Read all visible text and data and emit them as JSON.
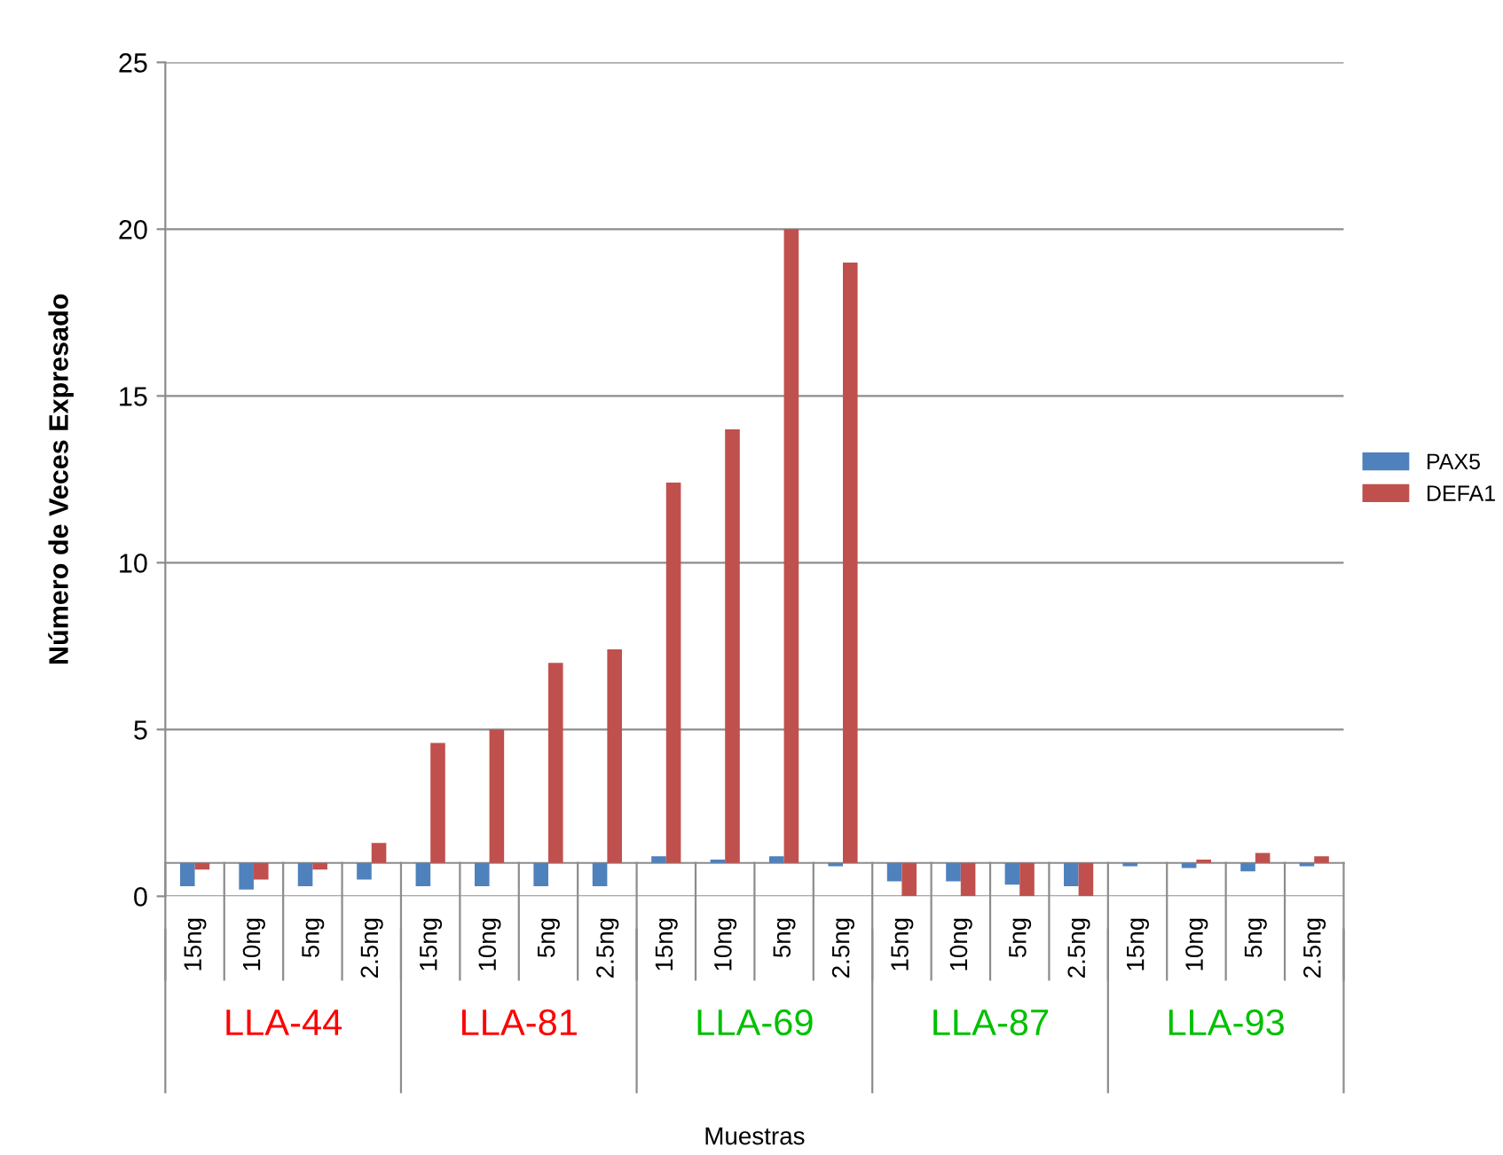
{
  "chart_data": {
    "type": "bar",
    "ylabel": "Número de Veces Expresado",
    "categories": [
      "15ng",
      "10ng",
      "5ng",
      "2.5ng",
      "15ng",
      "10ng",
      "5ng",
      "2.5ng",
      "15ng",
      "10ng",
      "5ng",
      "2.5ng",
      "15ng",
      "10ng",
      "5ng",
      "2.5ng",
      "15ng",
      "10ng",
      "5ng",
      "2.5ng"
    ],
    "series": [
      {
        "name": "PAX5",
        "color": "#4f81bd",
        "base": [
          1,
          1,
          1,
          1,
          1,
          1,
          1,
          1,
          1,
          1,
          1,
          1,
          1,
          1,
          1,
          1,
          1,
          1,
          1,
          1
        ],
        "values": [
          -0.7,
          -0.8,
          -0.7,
          -0.5,
          -0.7,
          -0.7,
          -0.7,
          -0.7,
          0.2,
          0.1,
          0.2,
          -0.1,
          -0.55,
          -0.55,
          -0.65,
          -0.7,
          -0.1,
          -0.15,
          -0.25,
          -0.1
        ]
      },
      {
        "name": "DEFA1",
        "color": "#c0504d",
        "base": [
          1,
          1,
          1,
          1,
          1,
          1,
          1,
          1,
          1,
          1,
          1,
          1,
          1,
          1,
          1,
          1,
          null,
          1,
          1,
          1
        ],
        "values": [
          -0.2,
          -0.5,
          -0.2,
          0.6,
          3.6,
          4.0,
          6.0,
          6.4,
          11.4,
          13.0,
          19.0,
          18.0,
          -1,
          -1,
          -1,
          -1,
          null,
          0.1,
          0.3,
          0.2
        ]
      }
    ],
    "annotations": [
      "LLA-44",
      "LLA-81",
      "LLA-69",
      "LLA-87",
      "LLA-93",
      "Muestras"
    ],
    "ylim": [
      0,
      25
    ],
    "yticks": [
      0,
      5,
      10,
      15,
      20,
      25
    ],
    "grid": "y",
    "legend": "right"
  }
}
